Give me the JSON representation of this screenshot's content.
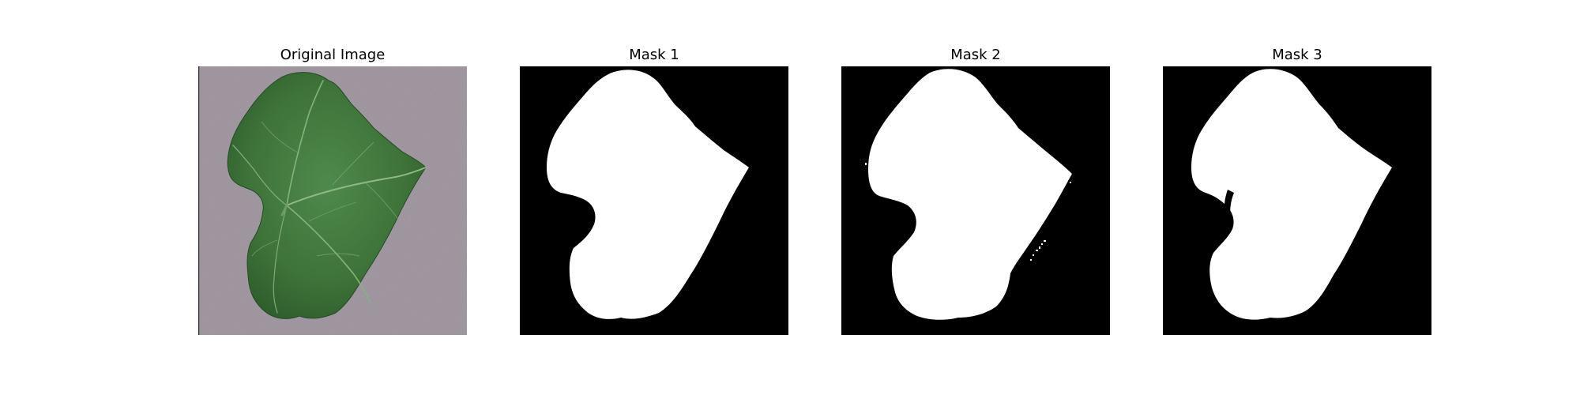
{
  "panels": [
    {
      "title": "Original Image",
      "kind": "photo",
      "subject": "green-leaf-on-gray-surface"
    },
    {
      "title": "Mask 1",
      "kind": "mask"
    },
    {
      "title": "Mask 2",
      "kind": "mask"
    },
    {
      "title": "Mask 3",
      "kind": "mask"
    }
  ],
  "colors": {
    "mask_background": "#000000",
    "mask_foreground": "#ffffff",
    "photo_background": "#a59ca6",
    "leaf_dark": "#2f5a30",
    "leaf_mid": "#437a40",
    "leaf_light": "#5c9258",
    "vein": "#8fb889"
  }
}
